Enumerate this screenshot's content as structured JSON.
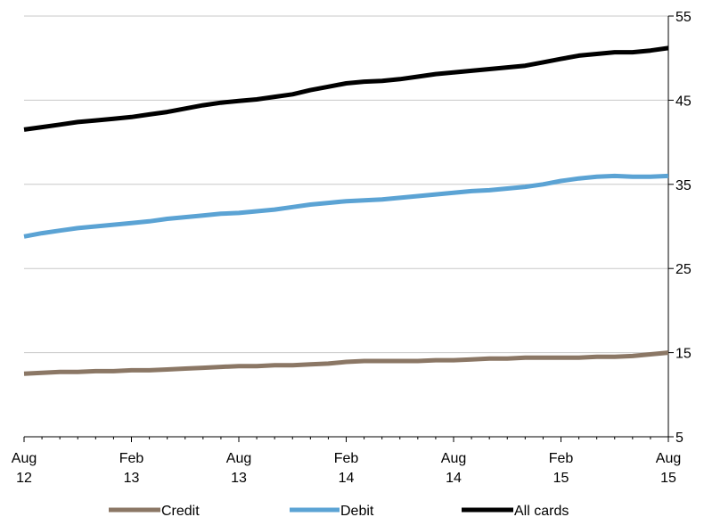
{
  "chart_data": {
    "type": "line",
    "x": [
      "2012-08",
      "2012-09",
      "2012-10",
      "2012-11",
      "2012-12",
      "2013-01",
      "2013-02",
      "2013-03",
      "2013-04",
      "2013-05",
      "2013-06",
      "2013-07",
      "2013-08",
      "2013-09",
      "2013-10",
      "2013-11",
      "2013-12",
      "2014-01",
      "2014-02",
      "2014-03",
      "2014-04",
      "2014-05",
      "2014-06",
      "2014-07",
      "2014-08",
      "2014-09",
      "2014-10",
      "2014-11",
      "2014-12",
      "2015-01",
      "2015-02",
      "2015-03",
      "2015-04",
      "2015-05",
      "2015-06",
      "2015-07",
      "2015-08"
    ],
    "x_tick_labels": [
      {
        "line1": "Aug",
        "line2": "12"
      },
      {
        "line1": "Feb",
        "line2": "13"
      },
      {
        "line1": "Aug",
        "line2": "13"
      },
      {
        "line1": "Feb",
        "line2": "14"
      },
      {
        "line1": "Aug",
        "line2": "14"
      },
      {
        "line1": "Feb",
        "line2": "15"
      },
      {
        "line1": "Aug",
        "line2": "15"
      }
    ],
    "y_ticks": [
      "5",
      "15",
      "25",
      "35",
      "45",
      "55"
    ],
    "ylim": [
      5,
      55
    ],
    "grid": true,
    "legend_position": "bottom",
    "series": [
      {
        "name": "Credit",
        "color": "#8b7765",
        "values": [
          12.5,
          12.6,
          12.7,
          12.7,
          12.8,
          12.8,
          12.9,
          12.9,
          13.0,
          13.1,
          13.2,
          13.3,
          13.4,
          13.4,
          13.5,
          13.5,
          13.6,
          13.7,
          13.9,
          14.0,
          14.0,
          14.0,
          14.0,
          14.1,
          14.1,
          14.2,
          14.3,
          14.3,
          14.4,
          14.4,
          14.4,
          14.4,
          14.5,
          14.5,
          14.6,
          14.8,
          15.0
        ]
      },
      {
        "name": "Debit",
        "color": "#5ba3d4",
        "values": [
          28.8,
          29.2,
          29.5,
          29.8,
          30.0,
          30.2,
          30.4,
          30.6,
          30.9,
          31.1,
          31.3,
          31.5,
          31.6,
          31.8,
          32.0,
          32.3,
          32.6,
          32.8,
          33.0,
          33.1,
          33.2,
          33.4,
          33.6,
          33.8,
          34.0,
          34.2,
          34.3,
          34.5,
          34.7,
          35.0,
          35.4,
          35.7,
          35.9,
          36.0,
          35.9,
          35.9,
          36.0
        ]
      },
      {
        "name": "All cards",
        "color": "#000000",
        "values": [
          41.5,
          41.8,
          42.1,
          42.4,
          42.6,
          42.8,
          43.0,
          43.3,
          43.6,
          44.0,
          44.4,
          44.7,
          44.9,
          45.1,
          45.4,
          45.7,
          46.2,
          46.6,
          47.0,
          47.2,
          47.3,
          47.5,
          47.8,
          48.1,
          48.3,
          48.5,
          48.7,
          48.9,
          49.1,
          49.5,
          49.9,
          50.3,
          50.5,
          50.7,
          50.7,
          50.9,
          51.2
        ]
      }
    ]
  }
}
